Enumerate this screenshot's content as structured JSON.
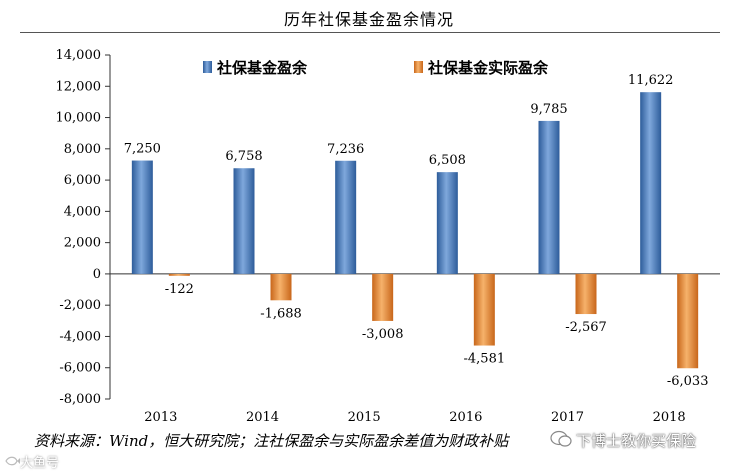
{
  "chart_data": {
    "type": "bar",
    "title": "历年社保基金盈余情况",
    "categories": [
      "2013",
      "2014",
      "2015",
      "2016",
      "2017",
      "2018"
    ],
    "series": [
      {
        "name": "社保基金盈余",
        "values": [
          7250,
          6758,
          7236,
          6508,
          9785,
          11622
        ],
        "labels": [
          "7,250",
          "6,758",
          "7,236",
          "6,508",
          "9,785",
          "11,622"
        ],
        "color": "#4a7ebb"
      },
      {
        "name": "社保基金实际盈余",
        "values": [
          -122,
          -1688,
          -3008,
          -4581,
          -2567,
          -6033
        ],
        "labels": [
          "-122",
          "-1,688",
          "-3,008",
          "-4,581",
          "-2,567",
          "-6,033"
        ],
        "color": "#e8862e"
      }
    ],
    "ylim": [
      -8000,
      14000
    ],
    "yticks": [
      -8000,
      -6000,
      -4000,
      -2000,
      0,
      2000,
      4000,
      6000,
      8000,
      10000,
      12000,
      14000
    ],
    "ytick_labels": [
      "-8,000",
      "-6,000",
      "-4,000",
      "-2,000",
      "0",
      "2,000",
      "4,000",
      "6,000",
      "8,000",
      "10,000",
      "12,000",
      "14,000"
    ],
    "grid": false,
    "legend_placement": "top"
  },
  "source_note": "资料来源：Wind，恒大研究院；注社保盈余与实际盈余差值为财政补贴",
  "watermark": {
    "text": "下博士教你买保险",
    "secondary": "大鱼号"
  }
}
